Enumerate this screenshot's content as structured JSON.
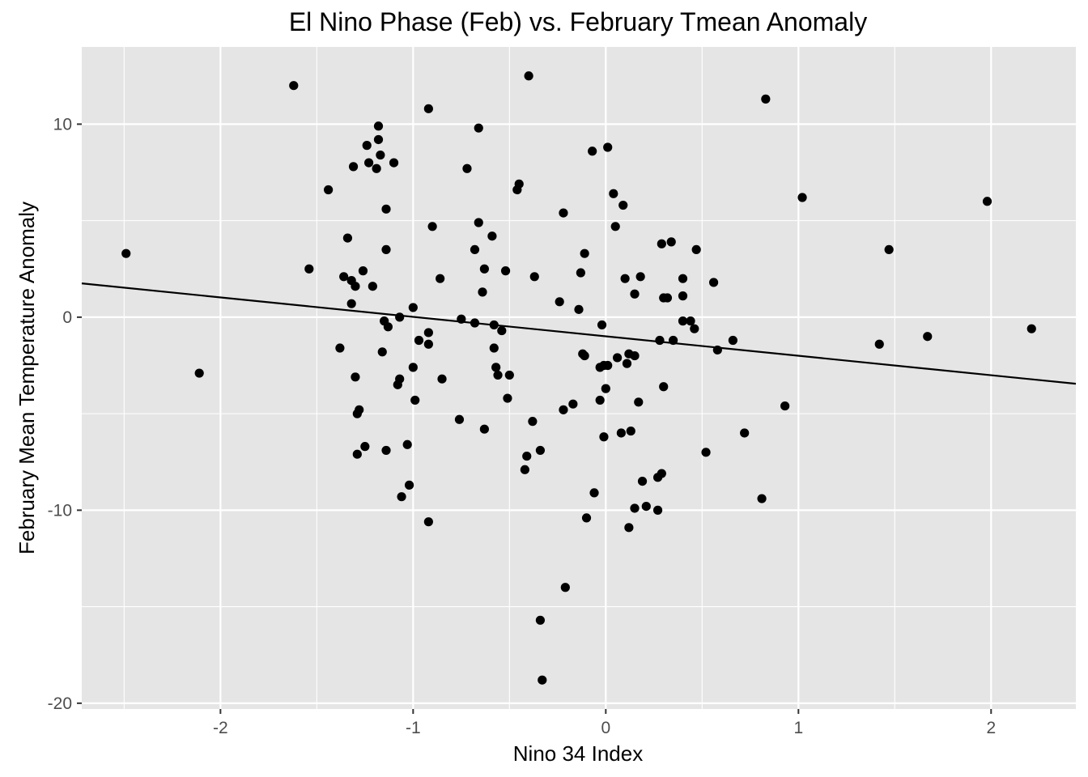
{
  "chart_data": {
    "type": "scatter",
    "title": "El Nino Phase (Feb) vs. February Tmean Anomaly",
    "xlabel": "Nino 34 Index",
    "ylabel": "February Mean Temperature Anomaly",
    "xlim": [
      -2.72,
      2.44
    ],
    "ylim": [
      -20.3,
      14.0
    ],
    "x_ticks": [
      -2,
      -1,
      0,
      1,
      2
    ],
    "x_tick_labels": [
      "-2",
      "-1",
      "0",
      "1",
      "2"
    ],
    "y_ticks": [
      -20,
      -10,
      0,
      10
    ],
    "y_tick_labels": [
      "-20",
      "-10",
      "0",
      "10"
    ],
    "grid": true,
    "colors": {
      "panel": "#e5e5e5",
      "grid": "#ffffff",
      "points": "#000000",
      "fit_line": "#000000"
    },
    "fit_line": {
      "x": [
        -2.72,
        2.44
      ],
      "y": [
        1.75,
        -3.45
      ]
    },
    "points": [
      {
        "x": -2.49,
        "y": 3.3
      },
      {
        "x": -2.11,
        "y": -2.9
      },
      {
        "x": -1.62,
        "y": 12.0
      },
      {
        "x": -1.54,
        "y": 2.5
      },
      {
        "x": -1.44,
        "y": 6.6
      },
      {
        "x": -1.38,
        "y": -1.6
      },
      {
        "x": -1.36,
        "y": 2.1
      },
      {
        "x": -1.34,
        "y": 4.1
      },
      {
        "x": -1.32,
        "y": 1.9
      },
      {
        "x": -1.32,
        "y": 0.7
      },
      {
        "x": -1.31,
        "y": 7.8
      },
      {
        "x": -1.3,
        "y": 1.6
      },
      {
        "x": -1.3,
        "y": -3.1
      },
      {
        "x": -1.29,
        "y": -5.0
      },
      {
        "x": -1.29,
        "y": -7.1
      },
      {
        "x": -1.28,
        "y": -4.8
      },
      {
        "x": -1.26,
        "y": 2.4
      },
      {
        "x": -1.25,
        "y": -6.7
      },
      {
        "x": -1.24,
        "y": 8.9
      },
      {
        "x": -1.23,
        "y": 8.0
      },
      {
        "x": -1.21,
        "y": 1.6
      },
      {
        "x": -1.19,
        "y": 7.7
      },
      {
        "x": -1.18,
        "y": 9.9
      },
      {
        "x": -1.18,
        "y": 9.2
      },
      {
        "x": -1.17,
        "y": 8.4
      },
      {
        "x": -1.16,
        "y": -1.8
      },
      {
        "x": -1.15,
        "y": -0.2
      },
      {
        "x": -1.14,
        "y": 5.6
      },
      {
        "x": -1.14,
        "y": 3.5
      },
      {
        "x": -1.14,
        "y": -6.9
      },
      {
        "x": -1.13,
        "y": -0.5
      },
      {
        "x": -1.1,
        "y": 8.0
      },
      {
        "x": -1.08,
        "y": -3.5
      },
      {
        "x": -1.07,
        "y": -3.2
      },
      {
        "x": -1.07,
        "y": 0.0
      },
      {
        "x": -1.06,
        "y": -9.3
      },
      {
        "x": -1.03,
        "y": -6.6
      },
      {
        "x": -1.02,
        "y": -8.7
      },
      {
        "x": -1.0,
        "y": -2.6
      },
      {
        "x": -1.0,
        "y": 0.5
      },
      {
        "x": -0.99,
        "y": -4.3
      },
      {
        "x": -0.97,
        "y": -1.2
      },
      {
        "x": -0.92,
        "y": -10.6
      },
      {
        "x": -0.92,
        "y": -1.4
      },
      {
        "x": -0.92,
        "y": -0.8
      },
      {
        "x": -0.92,
        "y": 10.8
      },
      {
        "x": -0.9,
        "y": 4.7
      },
      {
        "x": -0.86,
        "y": 2.0
      },
      {
        "x": -0.85,
        "y": -3.2
      },
      {
        "x": -0.76,
        "y": -5.3
      },
      {
        "x": -0.75,
        "y": -0.1
      },
      {
        "x": -0.72,
        "y": 7.7
      },
      {
        "x": -0.68,
        "y": 3.5
      },
      {
        "x": -0.68,
        "y": -0.3
      },
      {
        "x": -0.66,
        "y": 9.8
      },
      {
        "x": -0.66,
        "y": 4.9
      },
      {
        "x": -0.64,
        "y": 1.3
      },
      {
        "x": -0.63,
        "y": 2.5
      },
      {
        "x": -0.63,
        "y": -5.8
      },
      {
        "x": -0.59,
        "y": 4.2
      },
      {
        "x": -0.58,
        "y": -0.4
      },
      {
        "x": -0.58,
        "y": -1.6
      },
      {
        "x": -0.57,
        "y": -2.6
      },
      {
        "x": -0.56,
        "y": -3.0
      },
      {
        "x": -0.54,
        "y": -0.7
      },
      {
        "x": -0.52,
        "y": 2.4
      },
      {
        "x": -0.51,
        "y": -4.2
      },
      {
        "x": -0.5,
        "y": -3.0
      },
      {
        "x": -0.46,
        "y": 6.6
      },
      {
        "x": -0.45,
        "y": 6.9
      },
      {
        "x": -0.42,
        "y": -7.9
      },
      {
        "x": -0.41,
        "y": -7.2
      },
      {
        "x": -0.4,
        "y": 12.5
      },
      {
        "x": -0.38,
        "y": -5.4
      },
      {
        "x": -0.37,
        "y": 2.1
      },
      {
        "x": -0.34,
        "y": -6.9
      },
      {
        "x": -0.34,
        "y": -15.7
      },
      {
        "x": -0.33,
        "y": -18.8
      },
      {
        "x": -0.24,
        "y": 0.8
      },
      {
        "x": -0.22,
        "y": -4.8
      },
      {
        "x": -0.22,
        "y": 5.4
      },
      {
        "x": -0.21,
        "y": -14.0
      },
      {
        "x": -0.17,
        "y": -4.5
      },
      {
        "x": -0.14,
        "y": 0.4
      },
      {
        "x": -0.13,
        "y": 2.3
      },
      {
        "x": -0.12,
        "y": -1.9
      },
      {
        "x": -0.11,
        "y": 3.3
      },
      {
        "x": -0.11,
        "y": -2.0
      },
      {
        "x": -0.1,
        "y": -10.4
      },
      {
        "x": -0.07,
        "y": 8.6
      },
      {
        "x": -0.06,
        "y": -9.1
      },
      {
        "x": -0.03,
        "y": -2.6
      },
      {
        "x": -0.03,
        "y": -4.3
      },
      {
        "x": -0.02,
        "y": -0.4
      },
      {
        "x": -0.01,
        "y": -6.2
      },
      {
        "x": -0.01,
        "y": -2.5
      },
      {
        "x": 0.0,
        "y": -3.7
      },
      {
        "x": 0.01,
        "y": -2.5
      },
      {
        "x": 0.01,
        "y": 8.8
      },
      {
        "x": 0.04,
        "y": 6.4
      },
      {
        "x": 0.05,
        "y": 4.7
      },
      {
        "x": 0.06,
        "y": -2.1
      },
      {
        "x": 0.08,
        "y": -6.0
      },
      {
        "x": 0.09,
        "y": 5.8
      },
      {
        "x": 0.1,
        "y": 2.0
      },
      {
        "x": 0.11,
        "y": -2.4
      },
      {
        "x": 0.12,
        "y": -1.9
      },
      {
        "x": 0.12,
        "y": -10.9
      },
      {
        "x": 0.13,
        "y": -5.9
      },
      {
        "x": 0.15,
        "y": 1.2
      },
      {
        "x": 0.15,
        "y": -9.9
      },
      {
        "x": 0.15,
        "y": -2.0
      },
      {
        "x": 0.17,
        "y": -4.4
      },
      {
        "x": 0.18,
        "y": 2.1
      },
      {
        "x": 0.19,
        "y": -8.5
      },
      {
        "x": 0.21,
        "y": -9.8
      },
      {
        "x": 0.27,
        "y": -8.3
      },
      {
        "x": 0.27,
        "y": -10.0
      },
      {
        "x": 0.28,
        "y": -1.2
      },
      {
        "x": 0.29,
        "y": 3.8
      },
      {
        "x": 0.29,
        "y": -8.1
      },
      {
        "x": 0.3,
        "y": -3.6
      },
      {
        "x": 0.3,
        "y": 1.0
      },
      {
        "x": 0.32,
        "y": 1.0
      },
      {
        "x": 0.34,
        "y": 3.9
      },
      {
        "x": 0.35,
        "y": -1.2
      },
      {
        "x": 0.4,
        "y": 2.0
      },
      {
        "x": 0.4,
        "y": 1.1
      },
      {
        "x": 0.4,
        "y": -0.2
      },
      {
        "x": 0.44,
        "y": -0.2
      },
      {
        "x": 0.46,
        "y": -0.6
      },
      {
        "x": 0.47,
        "y": 3.5
      },
      {
        "x": 0.52,
        "y": -7.0
      },
      {
        "x": 0.56,
        "y": 1.8
      },
      {
        "x": 0.58,
        "y": -1.7
      },
      {
        "x": 0.66,
        "y": -1.2
      },
      {
        "x": 0.72,
        "y": -6.0
      },
      {
        "x": 0.81,
        "y": -9.4
      },
      {
        "x": 0.83,
        "y": 11.3
      },
      {
        "x": 0.93,
        "y": -4.6
      },
      {
        "x": 1.02,
        "y": 6.2
      },
      {
        "x": 1.42,
        "y": -1.4
      },
      {
        "x": 1.47,
        "y": 3.5
      },
      {
        "x": 1.67,
        "y": -1.0
      },
      {
        "x": 1.98,
        "y": 6.0
      },
      {
        "x": 2.21,
        "y": -0.6
      }
    ]
  }
}
